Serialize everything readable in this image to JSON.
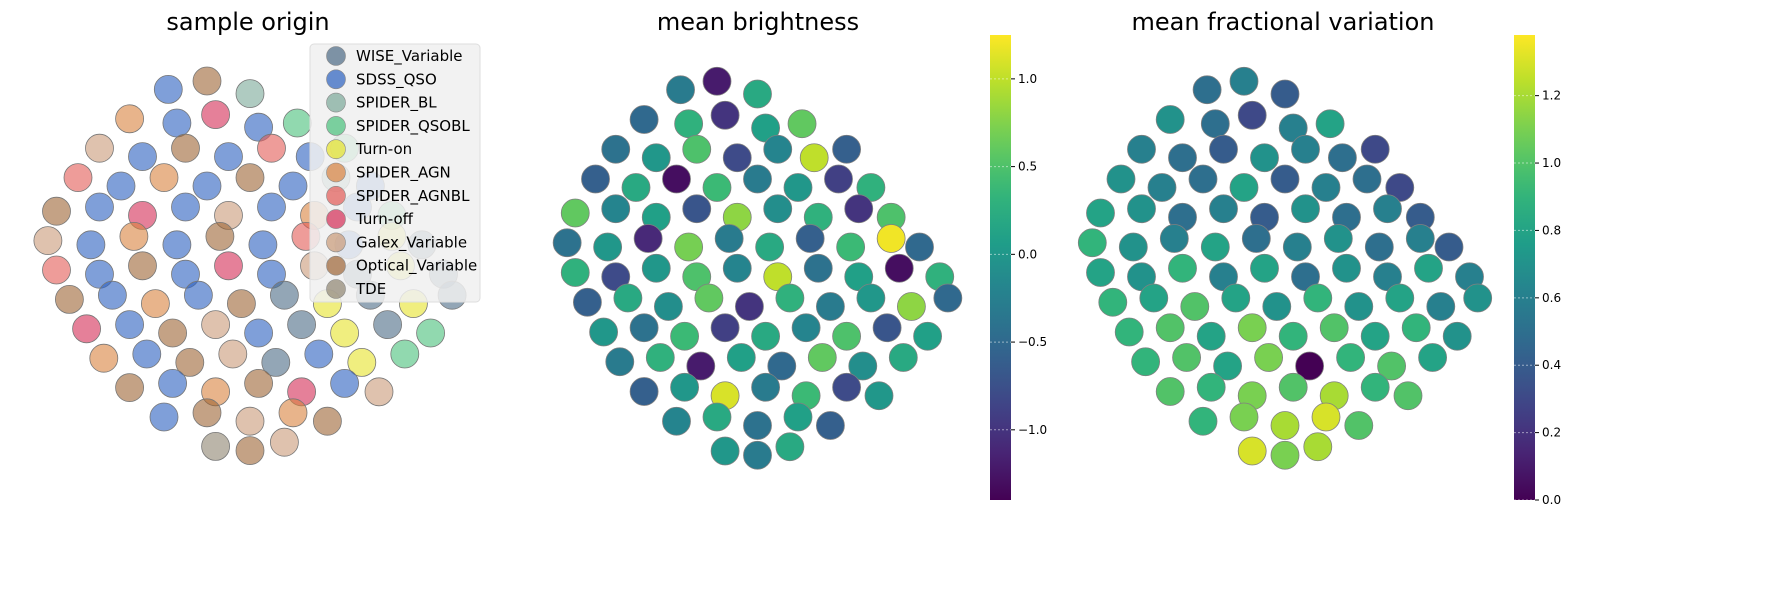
{
  "chart_data": [
    {
      "type": "scatter",
      "title": "sample origin",
      "axes_visible": false,
      "legend_placement": "top-right",
      "legend": [
        {
          "name": "WISE_Variable",
          "color": "#4b6a85"
        },
        {
          "name": "SDSS_QSO",
          "color": "#2a5fbf"
        },
        {
          "name": "SPIDER_BL",
          "color": "#7aa898"
        },
        {
          "name": "SPIDER_QSOBL",
          "color": "#47c07a"
        },
        {
          "name": "Turn-on",
          "color": "#e6e22a"
        },
        {
          "name": "SPIDER_AGN",
          "color": "#d9823e"
        },
        {
          "name": "SPIDER_AGNBL",
          "color": "#e25a55"
        },
        {
          "name": "Turn-off",
          "color": "#d42c55"
        },
        {
          "name": "Galex_Variable",
          "color": "#c99a78"
        },
        {
          "name": "Optical_Variable",
          "color": "#9c6434"
        },
        {
          "name": "TDE",
          "color": "#8e8470"
        }
      ]
    },
    {
      "type": "scatter",
      "title": "mean brightness",
      "axes_visible": false,
      "colormap": "viridis",
      "colorbar": {
        "range": [
          -1.4,
          1.25
        ],
        "ticks": [
          "−1.0",
          "−0.5",
          "0.0",
          "0.5",
          "1.0"
        ],
        "tick_values": [
          -1.0,
          -0.5,
          0.0,
          0.5,
          1.0
        ]
      }
    },
    {
      "type": "scatter",
      "title": "mean fractional variation",
      "axes_visible": false,
      "colormap": "viridis",
      "colorbar": {
        "range": [
          0.0,
          1.38
        ],
        "ticks": [
          "0.0",
          "0.2",
          "0.4",
          "0.6",
          "0.8",
          "1.0",
          "1.2"
        ],
        "tick_values": [
          0.0,
          0.2,
          0.4,
          0.6,
          0.8,
          1.0,
          1.2
        ]
      }
    }
  ],
  "points_fields": [
    "x",
    "y",
    "class_index",
    "mean_brightness",
    "mean_fractional_variation"
  ],
  "points": [
    [
      31,
      93,
      1,
      -0.3,
      0.5
    ],
    [
      40,
      95,
      9,
      -1.2,
      0.6
    ],
    [
      50,
      92,
      2,
      0.2,
      0.4
    ],
    [
      22,
      86,
      5,
      -0.5,
      0.7
    ],
    [
      33,
      85,
      1,
      0.3,
      0.5
    ],
    [
      42,
      87,
      7,
      -1.0,
      0.3
    ],
    [
      52,
      84,
      1,
      0.1,
      0.6
    ],
    [
      61,
      85,
      3,
      0.6,
      0.8
    ],
    [
      15,
      79,
      8,
      -0.4,
      0.6
    ],
    [
      25,
      77,
      1,
      0.0,
      0.5
    ],
    [
      35,
      79,
      9,
      0.5,
      0.4
    ],
    [
      45,
      77,
      1,
      -0.8,
      0.7
    ],
    [
      55,
      79,
      6,
      -0.2,
      0.6
    ],
    [
      64,
      77,
      1,
      1.0,
      0.5
    ],
    [
      72,
      79,
      3,
      -0.6,
      0.3
    ],
    [
      10,
      72,
      6,
      -0.6,
      0.7
    ],
    [
      20,
      70,
      1,
      0.2,
      0.6
    ],
    [
      30,
      72,
      5,
      -1.3,
      0.5
    ],
    [
      40,
      70,
      1,
      0.4,
      0.8
    ],
    [
      50,
      72,
      9,
      -0.3,
      0.4
    ],
    [
      60,
      70,
      1,
      0.0,
      0.6
    ],
    [
      70,
      72,
      2,
      -0.9,
      0.5
    ],
    [
      78,
      70,
      1,
      0.3,
      0.3
    ],
    [
      5,
      64,
      9,
      0.6,
      0.8
    ],
    [
      15,
      65,
      1,
      -0.2,
      0.7
    ],
    [
      25,
      63,
      7,
      0.1,
      0.5
    ],
    [
      35,
      65,
      1,
      -0.7,
      0.6
    ],
    [
      45,
      63,
      8,
      0.8,
      0.4
    ],
    [
      55,
      65,
      1,
      -0.1,
      0.7
    ],
    [
      65,
      63,
      5,
      0.3,
      0.5
    ],
    [
      75,
      65,
      1,
      -1.0,
      0.6
    ],
    [
      83,
      63,
      3,
      0.5,
      0.4
    ],
    [
      3,
      57,
      8,
      -0.4,
      0.9
    ],
    [
      13,
      56,
      1,
      0.0,
      0.7
    ],
    [
      23,
      58,
      5,
      -1.1,
      0.6
    ],
    [
      33,
      56,
      1,
      0.7,
      0.8
    ],
    [
      43,
      58,
      9,
      -0.3,
      0.5
    ],
    [
      53,
      56,
      1,
      0.2,
      0.6
    ],
    [
      63,
      58,
      6,
      -0.6,
      0.7
    ],
    [
      73,
      56,
      1,
      0.4,
      0.5
    ],
    [
      83,
      58,
      4,
      1.2,
      0.6
    ],
    [
      90,
      56,
      0,
      -0.5,
      0.4
    ],
    [
      5,
      50,
      6,
      0.3,
      0.8
    ],
    [
      15,
      49,
      1,
      -0.8,
      0.7
    ],
    [
      25,
      51,
      9,
      0.0,
      0.9
    ],
    [
      35,
      49,
      1,
      0.5,
      0.6
    ],
    [
      45,
      51,
      7,
      -0.2,
      0.8
    ],
    [
      55,
      49,
      1,
      1.0,
      0.5
    ],
    [
      65,
      51,
      8,
      -0.4,
      0.7
    ],
    [
      75,
      49,
      0,
      0.1,
      0.6
    ],
    [
      85,
      51,
      4,
      -1.3,
      0.8
    ],
    [
      95,
      49,
      0,
      0.3,
      0.6
    ],
    [
      8,
      43,
      9,
      -0.6,
      0.9
    ],
    [
      18,
      44,
      1,
      0.2,
      0.8
    ],
    [
      28,
      42,
      5,
      -0.1,
      1.0
    ],
    [
      38,
      44,
      1,
      0.6,
      0.8
    ],
    [
      48,
      42,
      9,
      -1.0,
      0.7
    ],
    [
      58,
      44,
      0,
      0.3,
      0.9
    ],
    [
      68,
      42,
      4,
      -0.3,
      0.7
    ],
    [
      78,
      44,
      0,
      0.0,
      0.8
    ],
    [
      88,
      42,
      4,
      0.8,
      0.6
    ],
    [
      97,
      44,
      0,
      -0.5,
      0.7
    ],
    [
      12,
      36,
      7,
      0.0,
      0.9
    ],
    [
      22,
      37,
      1,
      -0.4,
      1.0
    ],
    [
      32,
      35,
      9,
      0.4,
      0.8
    ],
    [
      42,
      37,
      8,
      -0.9,
      1.1
    ],
    [
      52,
      35,
      1,
      0.2,
      0.9
    ],
    [
      62,
      37,
      0,
      -0.2,
      1.0
    ],
    [
      72,
      35,
      4,
      0.5,
      0.8
    ],
    [
      82,
      37,
      0,
      -0.7,
      0.9
    ],
    [
      92,
      35,
      3,
      0.1,
      0.7
    ],
    [
      16,
      29,
      5,
      -0.3,
      0.9
    ],
    [
      26,
      30,
      1,
      0.3,
      1.0
    ],
    [
      36,
      28,
      9,
      -1.2,
      0.8
    ],
    [
      46,
      30,
      8,
      0.1,
      1.1
    ],
    [
      56,
      28,
      0,
      -0.5,
      0.0
    ],
    [
      66,
      30,
      1,
      0.6,
      0.9
    ],
    [
      76,
      28,
      4,
      -0.1,
      1.0
    ],
    [
      86,
      30,
      3,
      0.2,
      0.8
    ],
    [
      22,
      22,
      9,
      -0.6,
      1.0
    ],
    [
      32,
      23,
      1,
      0.0,
      0.9
    ],
    [
      42,
      21,
      5,
      1.1,
      1.1
    ],
    [
      52,
      23,
      9,
      -0.3,
      1.0
    ],
    [
      62,
      21,
      7,
      0.4,
      1.2
    ],
    [
      72,
      23,
      1,
      -0.8,
      0.9
    ],
    [
      80,
      21,
      8,
      0.0,
      1.0
    ],
    [
      30,
      15,
      1,
      -0.2,
      0.9
    ],
    [
      40,
      16,
      9,
      0.2,
      1.1
    ],
    [
      50,
      14,
      8,
      -0.4,
      1.2
    ],
    [
      60,
      16,
      5,
      0.1,
      1.3
    ],
    [
      68,
      14,
      9,
      -0.6,
      1.0
    ],
    [
      42,
      8,
      10,
      0.0,
      1.3
    ],
    [
      50,
      7,
      9,
      -0.3,
      1.1
    ],
    [
      58,
      9,
      8,
      0.2,
      1.2
    ]
  ]
}
